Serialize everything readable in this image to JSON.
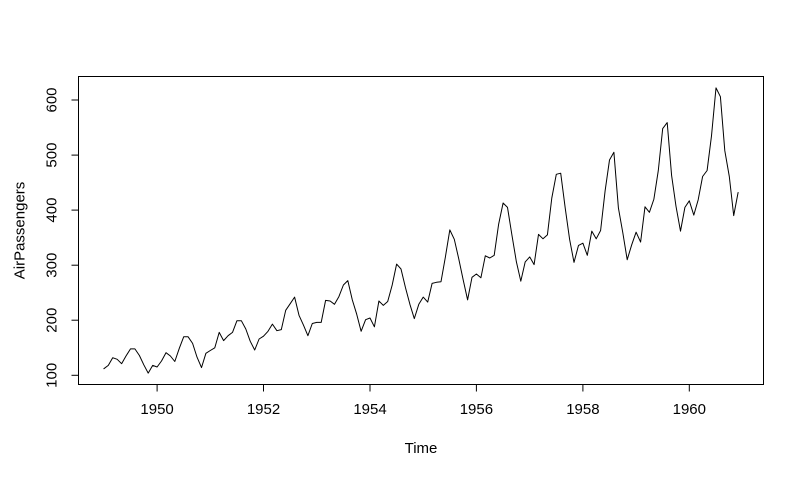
{
  "figure": {
    "background": "#ffffff",
    "line_color": "#000000",
    "axis_color": "#000000",
    "text_color": "#000000"
  },
  "chart_data": {
    "type": "line",
    "title": "",
    "xlabel": "Time",
    "ylabel": "AirPassengers",
    "x_start_year": 1949,
    "frequency": 12,
    "x_ticks": [
      1950,
      1952,
      1954,
      1956,
      1958,
      1960
    ],
    "y_ticks": [
      100,
      200,
      300,
      400,
      500,
      600
    ],
    "xlim": [
      1948.5233,
      1961.3933
    ],
    "ylim": [
      83.28,
      642.72
    ],
    "grid": false,
    "legend": false,
    "series": [
      {
        "name": "AirPassengers",
        "values": [
          112,
          118,
          132,
          129,
          121,
          135,
          148,
          148,
          136,
          119,
          104,
          118,
          115,
          126,
          141,
          135,
          125,
          149,
          170,
          170,
          158,
          133,
          114,
          140,
          145,
          150,
          178,
          163,
          172,
          178,
          199,
          199,
          184,
          162,
          146,
          166,
          171,
          180,
          193,
          181,
          183,
          218,
          230,
          242,
          209,
          191,
          172,
          194,
          196,
          196,
          236,
          235,
          229,
          243,
          264,
          272,
          237,
          211,
          180,
          201,
          204,
          188,
          235,
          227,
          234,
          264,
          302,
          293,
          259,
          229,
          203,
          229,
          242,
          233,
          267,
          269,
          270,
          315,
          364,
          347,
          312,
          274,
          237,
          278,
          284,
          277,
          317,
          313,
          318,
          374,
          413,
          405,
          355,
          306,
          271,
          306,
          315,
          301,
          356,
          348,
          355,
          422,
          465,
          467,
          404,
          347,
          305,
          336,
          340,
          318,
          362,
          348,
          363,
          435,
          491,
          505,
          404,
          359,
          310,
          337,
          360,
          342,
          406,
          396,
          420,
          472,
          548,
          559,
          463,
          407,
          362,
          405,
          417,
          391,
          419,
          461,
          472,
          535,
          622,
          606,
          508,
          461,
          390,
          432
        ]
      }
    ]
  }
}
